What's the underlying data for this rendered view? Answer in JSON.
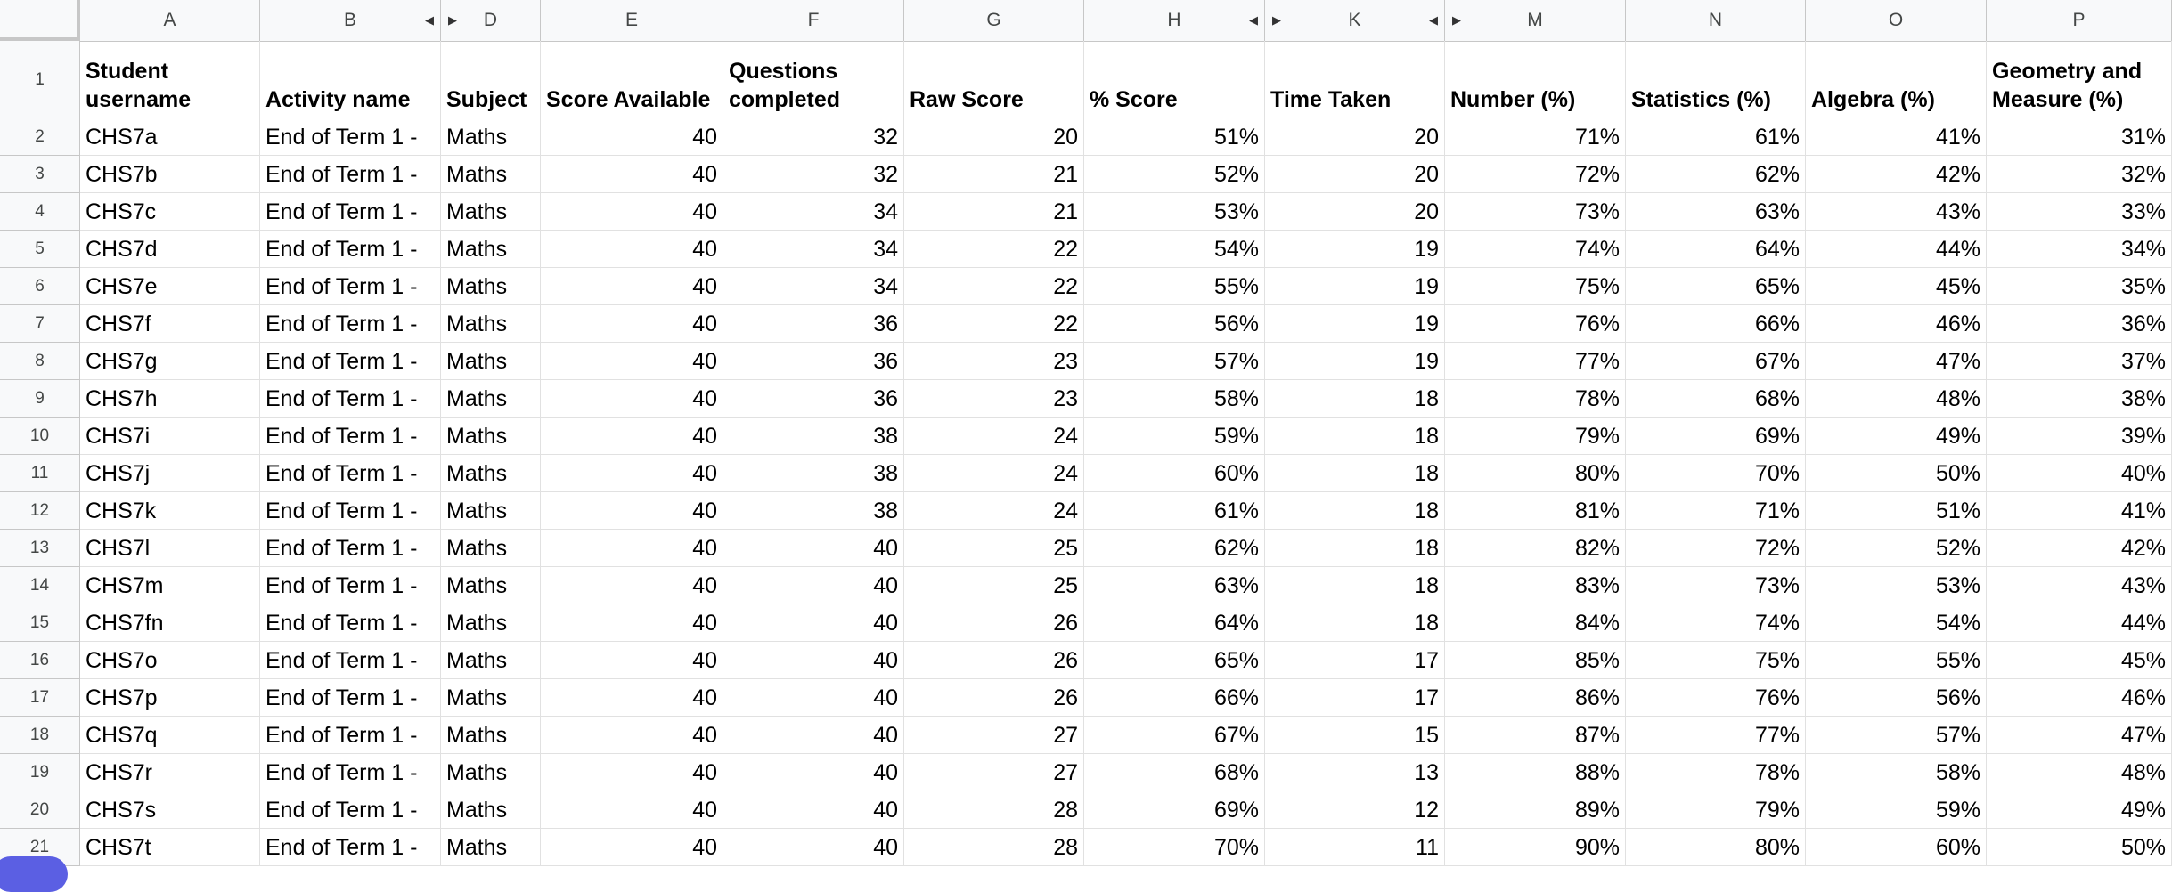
{
  "columns": [
    {
      "letter": "A",
      "header": "Student username",
      "align": "txt"
    },
    {
      "letter": "B",
      "header": "Activity name",
      "align": "txt"
    },
    {
      "letter": "D",
      "header": "Subject",
      "align": "txt"
    },
    {
      "letter": "E",
      "header": "Score Available",
      "align": "num"
    },
    {
      "letter": "F",
      "header": "Questions completed",
      "align": "num"
    },
    {
      "letter": "G",
      "header": "Raw Score",
      "align": "num"
    },
    {
      "letter": "H",
      "header": "% Score",
      "align": "num"
    },
    {
      "letter": "K",
      "header": "Time Taken",
      "align": "num"
    },
    {
      "letter": "M",
      "header": "Number (%)",
      "align": "num"
    },
    {
      "letter": "N",
      "header": "Statistics (%)",
      "align": "num"
    },
    {
      "letter": "O",
      "header": "Algebra (%)",
      "align": "num"
    },
    {
      "letter": "P",
      "header": "Geometry and Measure (%)",
      "align": "num"
    }
  ],
  "header_row_number": "1",
  "rows": [
    {
      "n": "2",
      "cells": [
        "CHS7a",
        "End of Term 1 -",
        "Maths",
        "40",
        "32",
        "20",
        "51%",
        "20",
        "71%",
        "61%",
        "41%",
        "31%"
      ]
    },
    {
      "n": "3",
      "cells": [
        "CHS7b",
        "End of Term 1 -",
        "Maths",
        "40",
        "32",
        "21",
        "52%",
        "20",
        "72%",
        "62%",
        "42%",
        "32%"
      ]
    },
    {
      "n": "4",
      "cells": [
        "CHS7c",
        "End of Term 1 -",
        "Maths",
        "40",
        "34",
        "21",
        "53%",
        "20",
        "73%",
        "63%",
        "43%",
        "33%"
      ]
    },
    {
      "n": "5",
      "cells": [
        "CHS7d",
        "End of Term 1 -",
        "Maths",
        "40",
        "34",
        "22",
        "54%",
        "19",
        "74%",
        "64%",
        "44%",
        "34%"
      ]
    },
    {
      "n": "6",
      "cells": [
        "CHS7e",
        "End of Term 1 -",
        "Maths",
        "40",
        "34",
        "22",
        "55%",
        "19",
        "75%",
        "65%",
        "45%",
        "35%"
      ]
    },
    {
      "n": "7",
      "cells": [
        "CHS7f",
        "End of Term 1 -",
        "Maths",
        "40",
        "36",
        "22",
        "56%",
        "19",
        "76%",
        "66%",
        "46%",
        "36%"
      ]
    },
    {
      "n": "8",
      "cells": [
        "CHS7g",
        "End of Term 1 -",
        "Maths",
        "40",
        "36",
        "23",
        "57%",
        "19",
        "77%",
        "67%",
        "47%",
        "37%"
      ]
    },
    {
      "n": "9",
      "cells": [
        "CHS7h",
        "End of Term 1 -",
        "Maths",
        "40",
        "36",
        "23",
        "58%",
        "18",
        "78%",
        "68%",
        "48%",
        "38%"
      ]
    },
    {
      "n": "10",
      "cells": [
        "CHS7i",
        "End of Term 1 -",
        "Maths",
        "40",
        "38",
        "24",
        "59%",
        "18",
        "79%",
        "69%",
        "49%",
        "39%"
      ]
    },
    {
      "n": "11",
      "cells": [
        "CHS7j",
        "End of Term 1 -",
        "Maths",
        "40",
        "38",
        "24",
        "60%",
        "18",
        "80%",
        "70%",
        "50%",
        "40%"
      ]
    },
    {
      "n": "12",
      "cells": [
        "CHS7k",
        "End of Term 1 -",
        "Maths",
        "40",
        "38",
        "24",
        "61%",
        "18",
        "81%",
        "71%",
        "51%",
        "41%"
      ]
    },
    {
      "n": "13",
      "cells": [
        "CHS7l",
        "End of Term 1 -",
        "Maths",
        "40",
        "40",
        "25",
        "62%",
        "18",
        "82%",
        "72%",
        "52%",
        "42%"
      ]
    },
    {
      "n": "14",
      "cells": [
        "CHS7m",
        "End of Term 1 -",
        "Maths",
        "40",
        "40",
        "25",
        "63%",
        "18",
        "83%",
        "73%",
        "53%",
        "43%"
      ]
    },
    {
      "n": "15",
      "cells": [
        "CHS7fn",
        "End of Term 1 -",
        "Maths",
        "40",
        "40",
        "26",
        "64%",
        "18",
        "84%",
        "74%",
        "54%",
        "44%"
      ]
    },
    {
      "n": "16",
      "cells": [
        "CHS7o",
        "End of Term 1 -",
        "Maths",
        "40",
        "40",
        "26",
        "65%",
        "17",
        "85%",
        "75%",
        "55%",
        "45%"
      ]
    },
    {
      "n": "17",
      "cells": [
        "CHS7p",
        "End of Term 1 -",
        "Maths",
        "40",
        "40",
        "26",
        "66%",
        "17",
        "86%",
        "76%",
        "56%",
        "46%"
      ]
    },
    {
      "n": "18",
      "cells": [
        "CHS7q",
        "End of Term 1 -",
        "Maths",
        "40",
        "40",
        "27",
        "67%",
        "15",
        "87%",
        "77%",
        "57%",
        "47%"
      ]
    },
    {
      "n": "19",
      "cells": [
        "CHS7r",
        "End of Term 1 -",
        "Maths",
        "40",
        "40",
        "27",
        "68%",
        "13",
        "88%",
        "78%",
        "58%",
        "48%"
      ]
    },
    {
      "n": "20",
      "cells": [
        "CHS7s",
        "End of Term 1 -",
        "Maths",
        "40",
        "40",
        "28",
        "69%",
        "12",
        "89%",
        "79%",
        "59%",
        "49%"
      ]
    },
    {
      "n": "21",
      "cells": [
        "CHS7t",
        "End of Term 1 -",
        "Maths",
        "40",
        "40",
        "28",
        "70%",
        "11",
        "90%",
        "80%",
        "60%",
        "50%"
      ]
    }
  ],
  "icons": {
    "expand_right": "triangle-right-icon",
    "expand_left": "triangle-left-icon"
  },
  "colors": {
    "header_bg": "#f8f9fa",
    "grid": "#e1e1e1",
    "fab": "#5b5fe3"
  }
}
